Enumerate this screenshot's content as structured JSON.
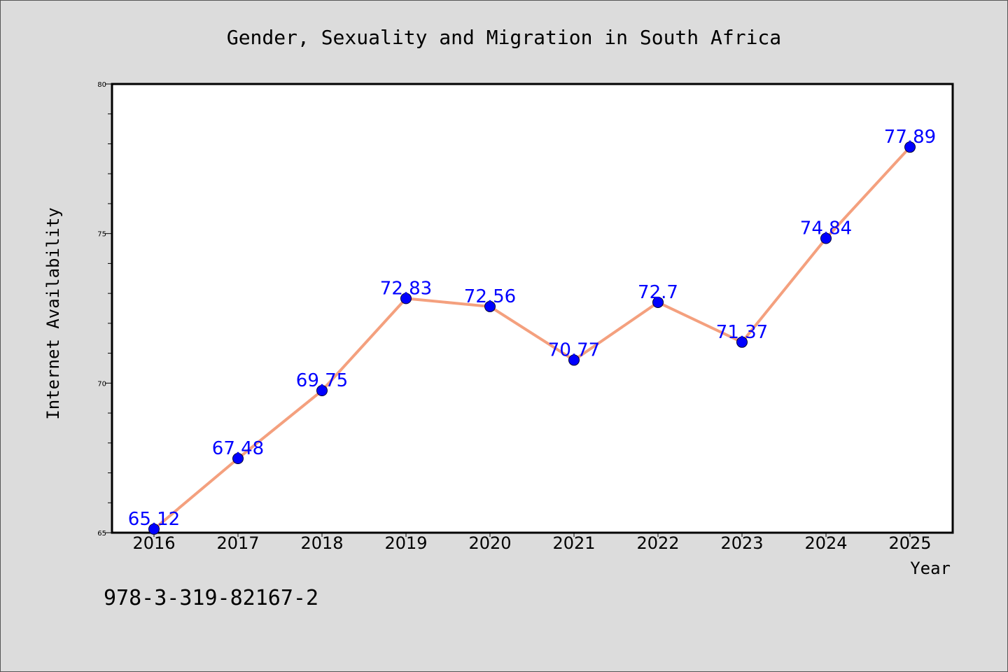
{
  "chart_data": {
    "type": "line",
    "title": "Gender, Sexuality and Migration in South Africa",
    "xlabel": "Year",
    "ylabel": "Internet Availability",
    "categories": [
      "2016",
      "2017",
      "2018",
      "2019",
      "2020",
      "2021",
      "2022",
      "2023",
      "2024",
      "2025"
    ],
    "series": [
      {
        "values": [
          65.12,
          67.48,
          69.75,
          72.83,
          72.56,
          70.77,
          72.7,
          71.37,
          74.84,
          77.89
        ],
        "data_labels": [
          "65.12",
          "67.48",
          "69.75",
          "72.83",
          "72.56",
          "70.77",
          "72.7",
          "71.37",
          "74.84",
          "77.89"
        ]
      }
    ],
    "ylim": [
      65,
      80
    ],
    "yticks": [
      "65",
      "70",
      "75",
      "80"
    ],
    "grid": false,
    "line_color": "#f4a07e",
    "marker_color": "#0000ff",
    "label_color": "#0000ff"
  },
  "annotation": "978-3-319-82167-2"
}
